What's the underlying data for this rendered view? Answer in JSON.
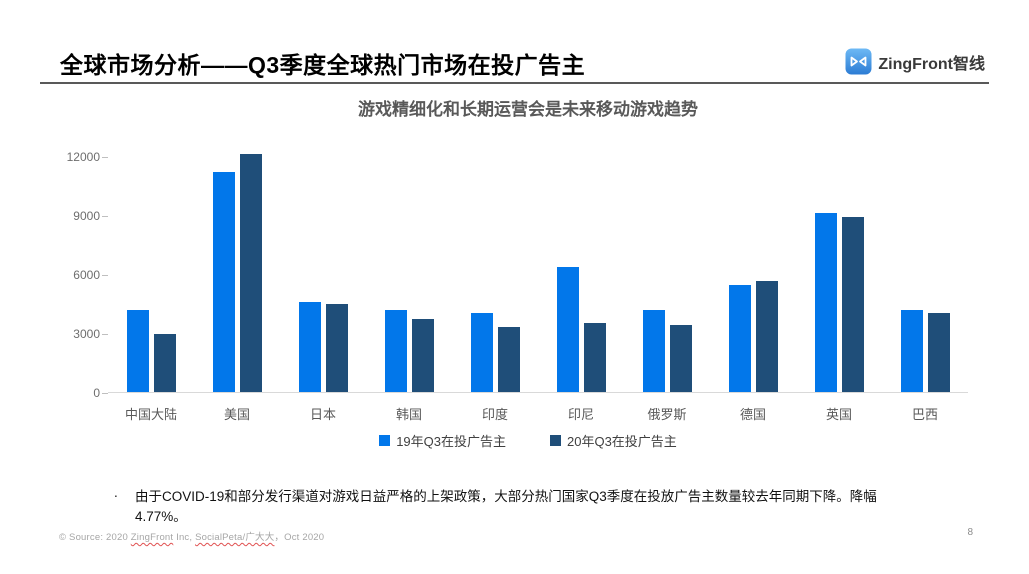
{
  "header": {
    "title": "全球市场分析——Q3季度全球热门市场在投广告主",
    "logo_text": "ZingFront智线"
  },
  "colors": {
    "series_light_blue": "#0277EA",
    "series_dark_blue": "#1F4E79",
    "header_rule": "#595959",
    "logo_blue_top": "#6db9f5",
    "logo_blue_bottom": "#2c7cd4"
  },
  "chart_data": {
    "type": "bar",
    "title": "游戏精细化和长期运营会是未来移动游戏趋势",
    "categories": [
      "中国大陆",
      "美国",
      "日本",
      "韩国",
      "印度",
      "印尼",
      "俄罗斯",
      "德国",
      "英国",
      "巴西"
    ],
    "series": [
      {
        "name": "19年Q3在投广告主",
        "color": "#0277EA",
        "values": [
          4150,
          11200,
          4600,
          4150,
          4000,
          6350,
          4150,
          5450,
          9100,
          4150
        ]
      },
      {
        "name": "20年Q3在投广告主",
        "color": "#1F4E79",
        "values": [
          2950,
          12100,
          4450,
          3700,
          3300,
          3500,
          3400,
          5650,
          8900,
          4000
        ]
      }
    ],
    "xlabel": "",
    "ylabel": "",
    "ylim": [
      0,
      12000
    ],
    "yticks": [
      0,
      3000,
      6000,
      9000,
      12000
    ],
    "grid": false,
    "legend_position": "bottom"
  },
  "note": {
    "bullet": ".",
    "text": "由于COVID-19和部分发行渠道对游戏日益严格的上架政策，大部分热门国家Q3季度在投放广告主数量较去年同期下降。降幅4.77%。"
  },
  "footer": {
    "source_prefix": "© Source: 2020 ",
    "source_zingfront": "ZingFront",
    "source_mid": " Inc, ",
    "source_socialpeta": "SocialPeta/广大大",
    "source_suffix": "，Oct 2020",
    "page": "8"
  }
}
